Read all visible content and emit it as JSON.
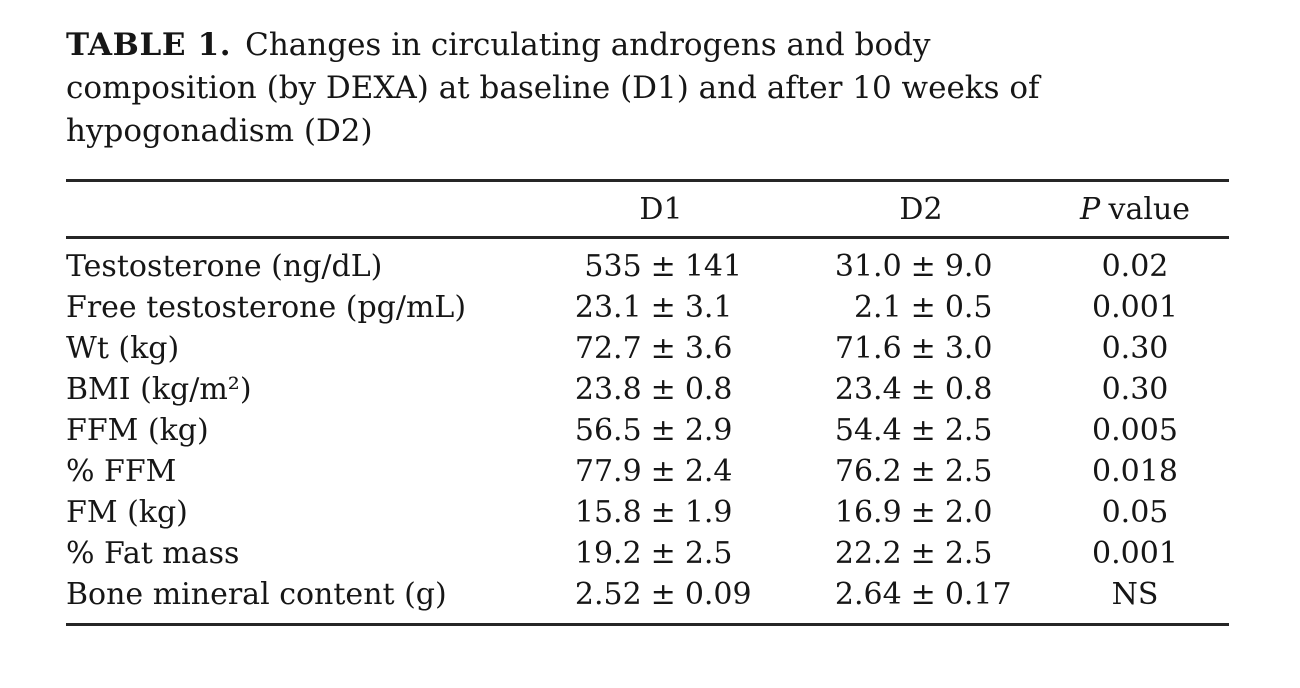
{
  "caption": {
    "label": "TABLE 1.",
    "lines": [
      "Changes in circulating androgens and body",
      "composition (by DEXA) at baseline (D1) and after 10 weeks of",
      "hypogonadism (D2)"
    ]
  },
  "table": {
    "pm_symbol": "±",
    "columns": {
      "row_header": "",
      "d1": "D1",
      "d2": "D2",
      "p_italic": "P",
      "p_rest": "value"
    },
    "rows": [
      {
        "label": "Testosterone (ng/dL)",
        "d1": {
          "mean": "535",
          "sd": "141"
        },
        "d2": {
          "mean": "31.0",
          "sd": "9.0"
        },
        "p": "0.02"
      },
      {
        "label": "Free testosterone (pg/mL)",
        "d1": {
          "mean": "23.1",
          "sd": "3.1"
        },
        "d2": {
          "mean": "2.1",
          "sd": "0.5"
        },
        "p": "0.001"
      },
      {
        "label": "Wt (kg)",
        "d1": {
          "mean": "72.7",
          "sd": "3.6"
        },
        "d2": {
          "mean": "71.6",
          "sd": "3.0"
        },
        "p": "0.30"
      },
      {
        "label": "BMI (kg/m²)",
        "d1": {
          "mean": "23.8",
          "sd": "0.8"
        },
        "d2": {
          "mean": "23.4",
          "sd": "0.8"
        },
        "p": "0.30"
      },
      {
        "label": "FFM (kg)",
        "d1": {
          "mean": "56.5",
          "sd": "2.9"
        },
        "d2": {
          "mean": "54.4",
          "sd": "2.5"
        },
        "p": "0.005"
      },
      {
        "label": "% FFM",
        "d1": {
          "mean": "77.9",
          "sd": "2.4"
        },
        "d2": {
          "mean": "76.2",
          "sd": "2.5"
        },
        "p": "0.018"
      },
      {
        "label": "FM (kg)",
        "d1": {
          "mean": "15.8",
          "sd": "1.9"
        },
        "d2": {
          "mean": "16.9",
          "sd": "2.0"
        },
        "p": "0.05"
      },
      {
        "label": "% Fat mass",
        "d1": {
          "mean": "19.2",
          "sd": "2.5"
        },
        "d2": {
          "mean": "22.2",
          "sd": "2.5"
        },
        "p": "0.001"
      },
      {
        "label": "Bone mineral content (g)",
        "d1": {
          "mean": "2.52",
          "sd": "0.09"
        },
        "d2": {
          "mean": "2.64",
          "sd": "0.17"
        },
        "p": "NS"
      }
    ]
  }
}
